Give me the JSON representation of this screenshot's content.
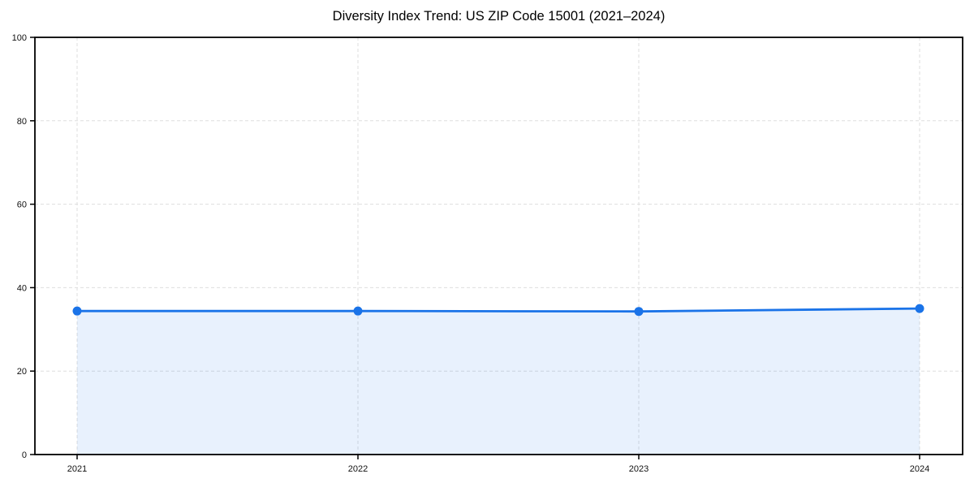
{
  "chart_data": {
    "type": "line",
    "title": "Diversity Index Trend: US ZIP Code 15001 (2021–2024)",
    "x_labels": [
      "2021",
      "2022",
      "2023",
      "2024"
    ],
    "series": [
      {
        "name": "Diversity Index",
        "values": [
          34.4,
          34.4,
          34.3,
          35.0
        ]
      }
    ],
    "xlabel": "",
    "ylabel": "",
    "ylim": [
      0,
      100
    ],
    "yticks": [
      0,
      20,
      40,
      60,
      80,
      100
    ],
    "grid": "dashed",
    "legend": "none",
    "area_fill": true,
    "colors": {
      "line": "#1a73e8",
      "marker": "#1a73e8",
      "area": "#1a73e8",
      "area_opacity": 0.1,
      "grid": "#dedede",
      "axis": "#000000",
      "tick_text": "#111111",
      "title_text": "#000000",
      "background": "#ffffff"
    }
  }
}
